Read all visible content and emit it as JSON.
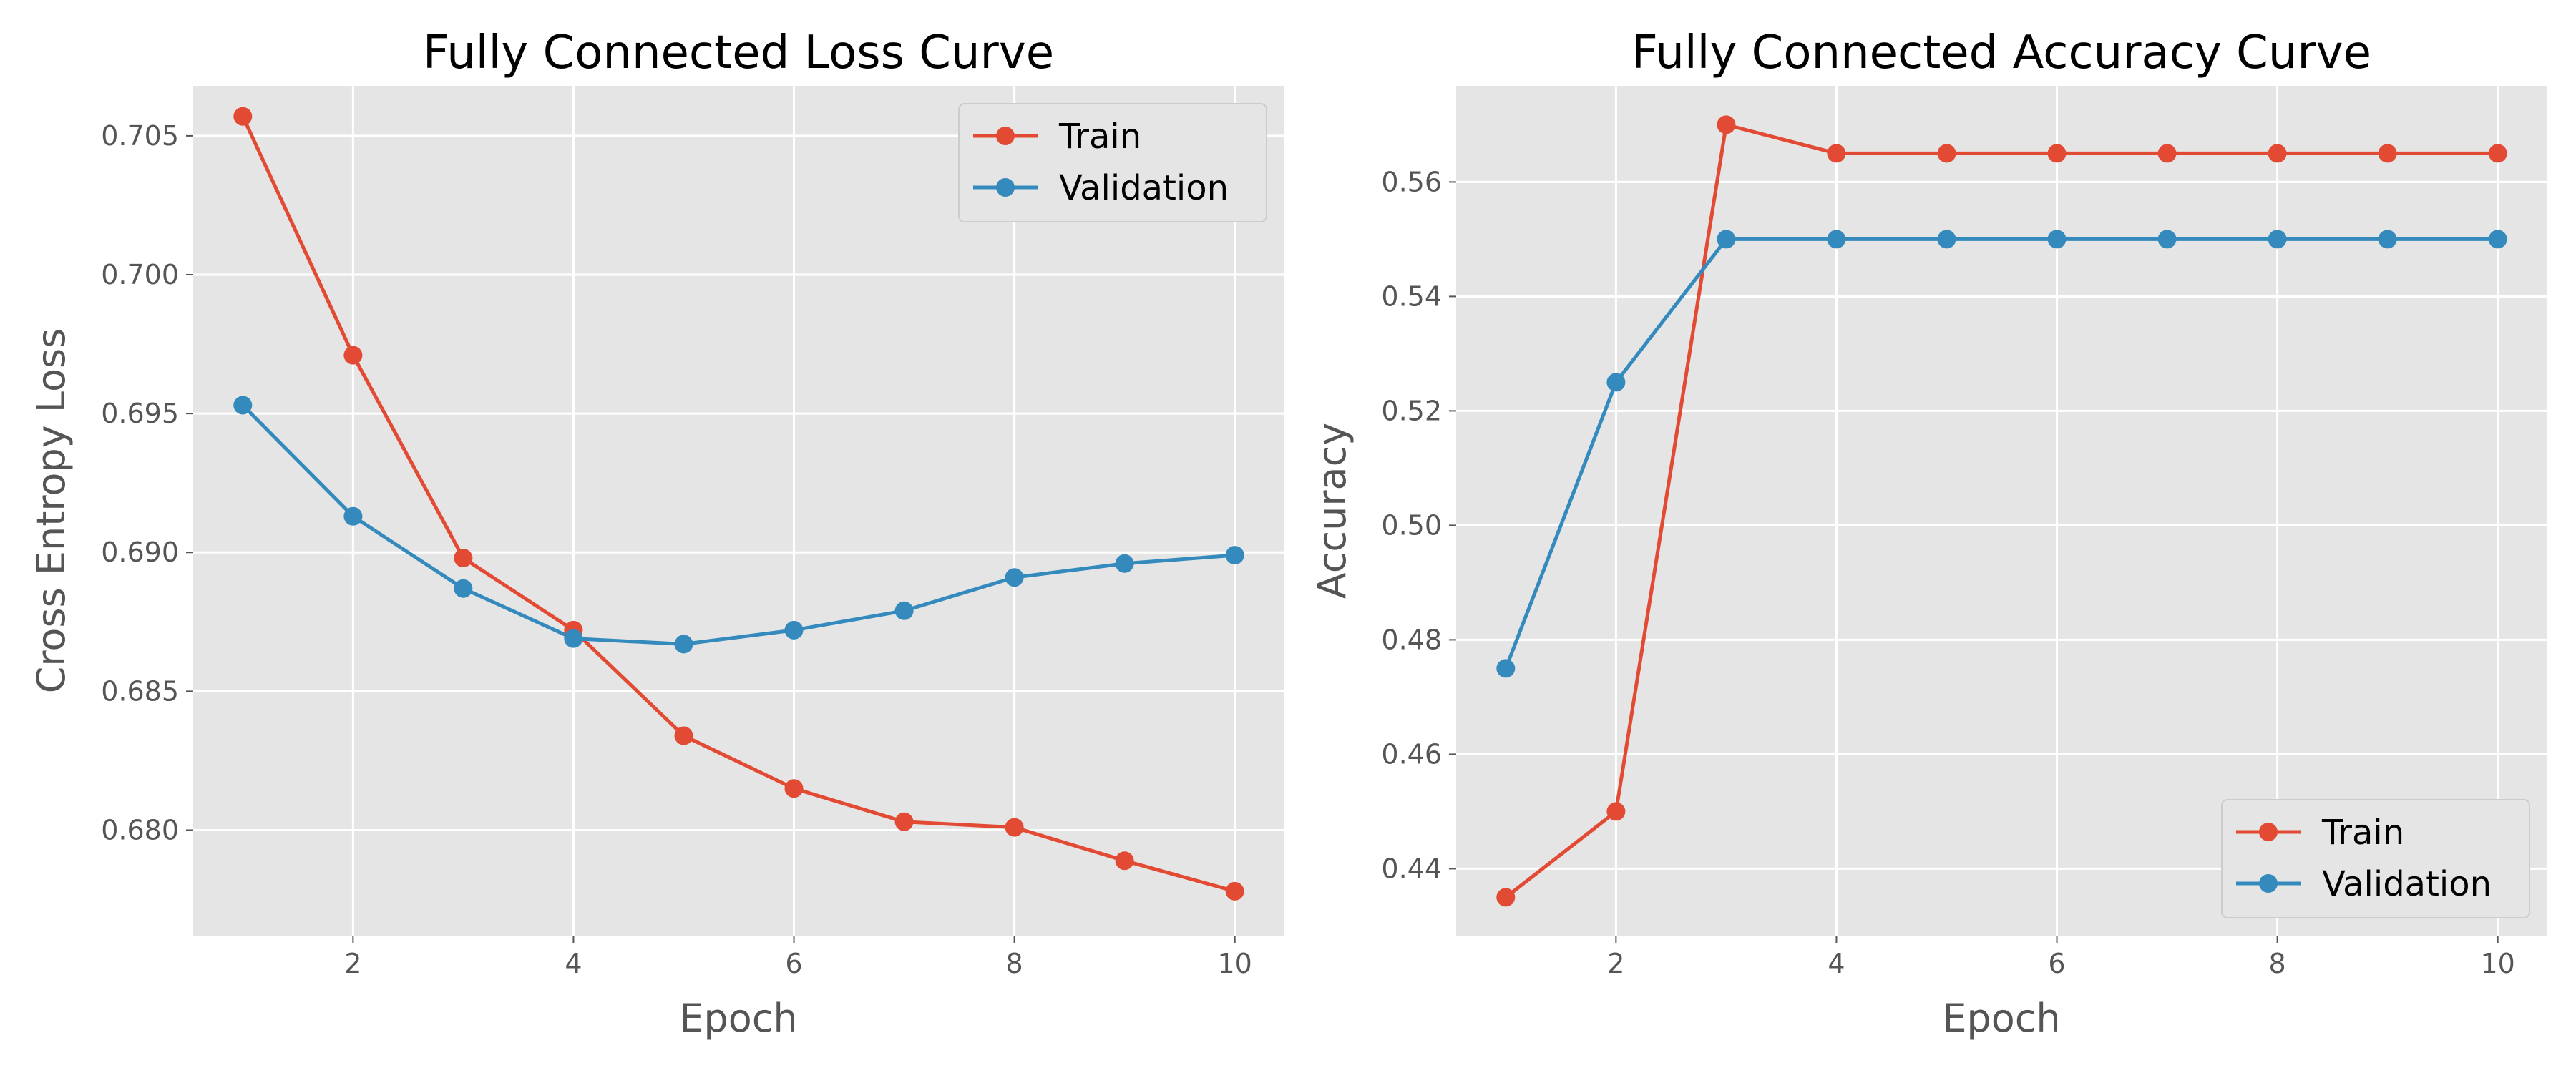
{
  "chart_data": [
    {
      "type": "line",
      "title": "Fully Connected Loss Curve",
      "xlabel": "Epoch",
      "ylabel": "Cross Entropy Loss",
      "x": [
        1,
        2,
        3,
        4,
        5,
        6,
        7,
        8,
        9,
        10
      ],
      "xlim": [
        0.55,
        10.45
      ],
      "ylim": [
        0.6762,
        0.7068
      ],
      "xticks": [
        2,
        4,
        6,
        8,
        10
      ],
      "xtick_labels": [
        "2",
        "4",
        "6",
        "8",
        "10"
      ],
      "yticks": [
        0.68,
        0.685,
        0.69,
        0.695,
        0.7,
        0.705
      ],
      "ytick_labels": [
        "0.680",
        "0.685",
        "0.690",
        "0.695",
        "0.700",
        "0.705"
      ],
      "grid": true,
      "legend_position": "upper right",
      "series": [
        {
          "name": "Train",
          "color": "#E24A33",
          "values": [
            0.7057,
            0.6971,
            0.6898,
            0.6872,
            0.6834,
            0.6815,
            0.6803,
            0.6801,
            0.6789,
            0.6778
          ]
        },
        {
          "name": "Validation",
          "color": "#348ABD",
          "values": [
            0.6953,
            0.6913,
            0.6887,
            0.6869,
            0.6867,
            0.6872,
            0.6879,
            0.6891,
            0.6896,
            0.6899
          ]
        }
      ]
    },
    {
      "type": "line",
      "title": "Fully Connected Accuracy Curve",
      "xlabel": "Epoch",
      "ylabel": "Accuracy",
      "x": [
        1,
        2,
        3,
        4,
        5,
        6,
        7,
        8,
        9,
        10
      ],
      "xlim": [
        0.55,
        10.45
      ],
      "ylim": [
        0.4283,
        0.5768
      ],
      "xticks": [
        2,
        4,
        6,
        8,
        10
      ],
      "xtick_labels": [
        "2",
        "4",
        "6",
        "8",
        "10"
      ],
      "yticks": [
        0.44,
        0.46,
        0.48,
        0.5,
        0.52,
        0.54,
        0.56
      ],
      "ytick_labels": [
        "0.44",
        "0.46",
        "0.48",
        "0.50",
        "0.52",
        "0.54",
        "0.56"
      ],
      "grid": true,
      "legend_position": "lower right",
      "series": [
        {
          "name": "Train",
          "color": "#E24A33",
          "values": [
            0.435,
            0.45,
            0.57,
            0.565,
            0.565,
            0.565,
            0.565,
            0.565,
            0.565,
            0.565
          ]
        },
        {
          "name": "Validation",
          "color": "#348ABD",
          "values": [
            0.475,
            0.525,
            0.55,
            0.55,
            0.55,
            0.55,
            0.55,
            0.55,
            0.55,
            0.55
          ]
        }
      ]
    }
  ]
}
